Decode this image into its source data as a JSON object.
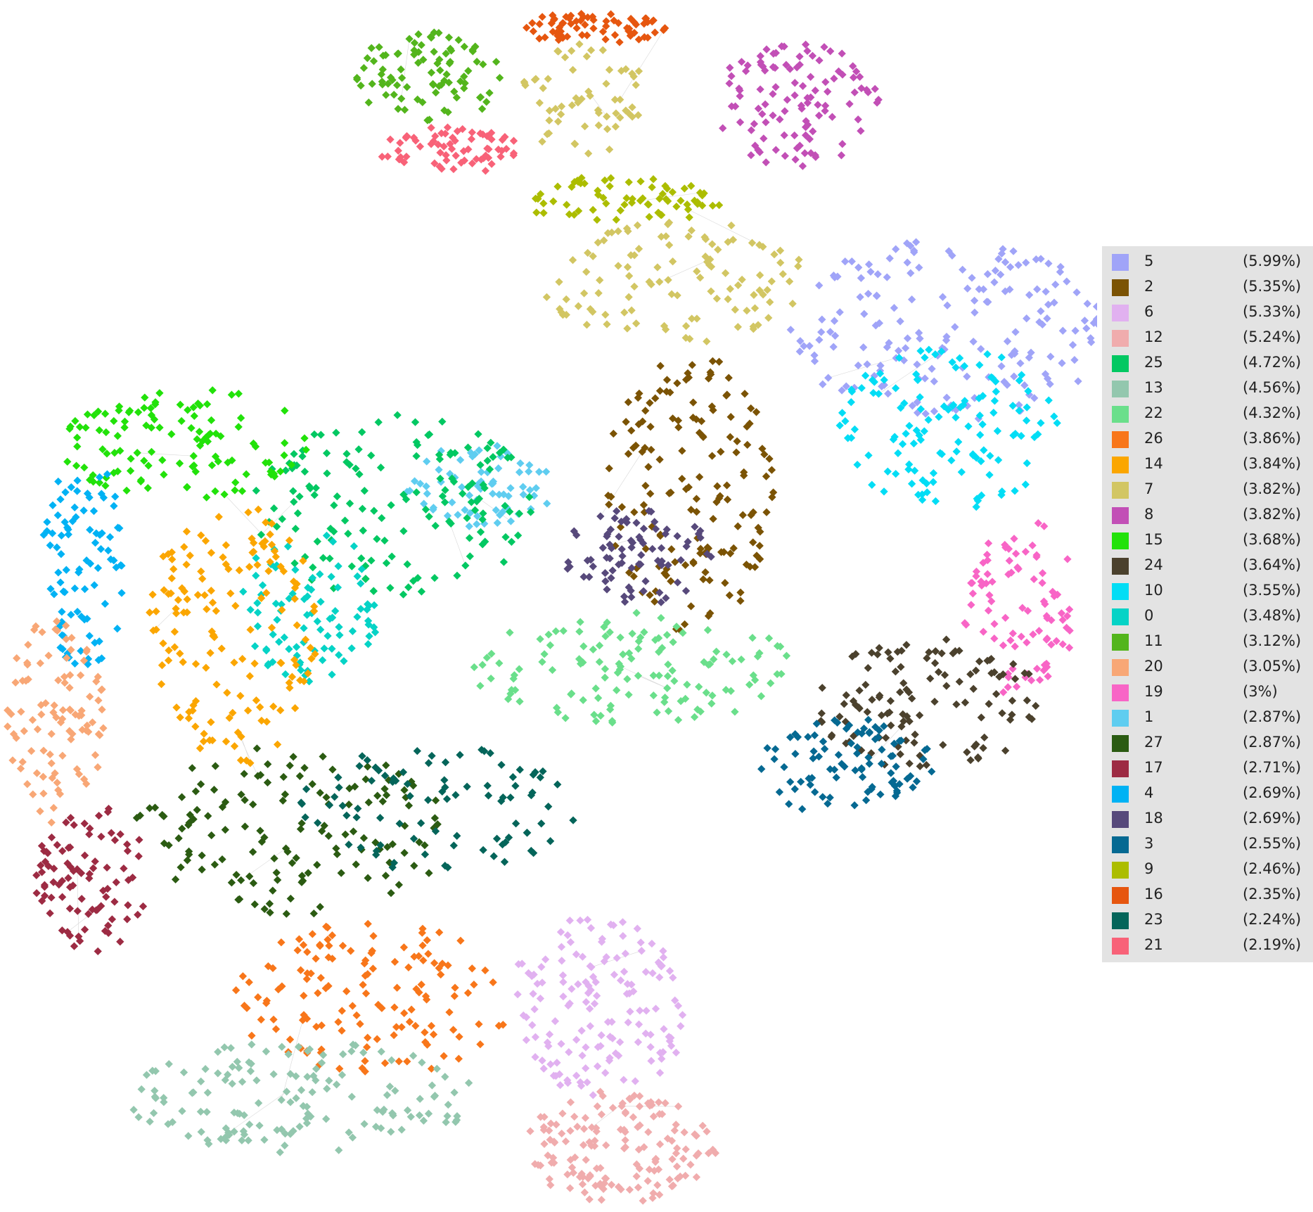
{
  "legend": {
    "entries": [
      {
        "id": "5",
        "percent": "(5.99%)",
        "color": "#a0a4f8"
      },
      {
        "id": "2",
        "percent": "(5.35%)",
        "color": "#7b5304"
      },
      {
        "id": "6",
        "percent": "(5.33%)",
        "color": "#e1b1f0"
      },
      {
        "id": "12",
        "percent": "(5.24%)",
        "color": "#f0acad"
      },
      {
        "id": "25",
        "percent": "(4.72%)",
        "color": "#02c862"
      },
      {
        "id": "13",
        "percent": "(4.56%)",
        "color": "#93c7ae"
      },
      {
        "id": "22",
        "percent": "(4.32%)",
        "color": "#6adf8b"
      },
      {
        "id": "26",
        "percent": "(3.86%)",
        "color": "#f8761a"
      },
      {
        "id": "14",
        "percent": "(3.84%)",
        "color": "#fba600"
      },
      {
        "id": "7",
        "percent": "(3.82%)",
        "color": "#d2c663"
      },
      {
        "id": "8",
        "percent": "(3.82%)",
        "color": "#c24fb6"
      },
      {
        "id": "15",
        "percent": "(3.68%)",
        "color": "#22e20a"
      },
      {
        "id": "24",
        "percent": "(3.64%)",
        "color": "#4b412d"
      },
      {
        "id": "10",
        "percent": "(3.55%)",
        "color": "#02ddf5"
      },
      {
        "id": "0",
        "percent": "(3.48%)",
        "color": "#05d3c6"
      },
      {
        "id": "11",
        "percent": "(3.12%)",
        "color": "#53b51c"
      },
      {
        "id": "20",
        "percent": "(3.05%)",
        "color": "#f8a776"
      },
      {
        "id": "19",
        "percent": "(3%)",
        "color": "#f865c6"
      },
      {
        "id": "1",
        "percent": "(2.87%)",
        "color": "#5fcdf0"
      },
      {
        "id": "27",
        "percent": "(2.87%)",
        "color": "#2b5b12"
      },
      {
        "id": "17",
        "percent": "(2.71%)",
        "color": "#9d2b43"
      },
      {
        "id": "4",
        "percent": "(2.69%)",
        "color": "#00b2f4"
      },
      {
        "id": "18",
        "percent": "(2.69%)",
        "color": "#57497b"
      },
      {
        "id": "3",
        "percent": "(2.55%)",
        "color": "#056992"
      },
      {
        "id": "9",
        "percent": "(2.46%)",
        "color": "#acbd00"
      },
      {
        "id": "16",
        "percent": "(2.35%)",
        "color": "#e6560f"
      },
      {
        "id": "23",
        "percent": "(2.24%)",
        "color": "#04655a"
      },
      {
        "id": "21",
        "percent": "(2.19%)",
        "color": "#f86278"
      }
    ]
  }
}
